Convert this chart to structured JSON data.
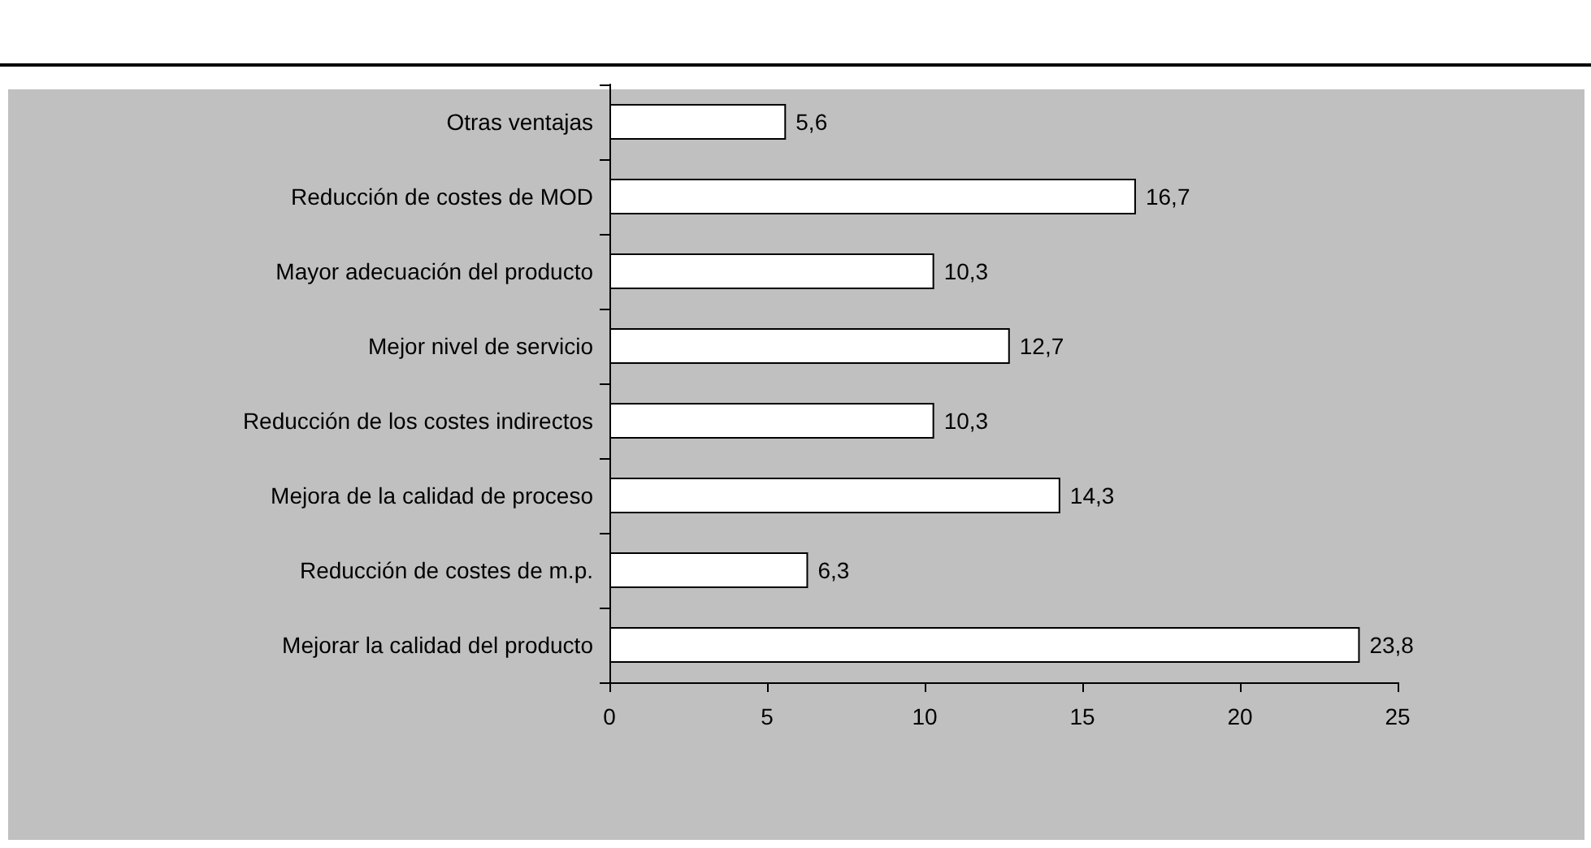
{
  "chart_data": {
    "type": "bar",
    "orientation": "horizontal",
    "categories": [
      "Otras ventajas",
      "Reducción de costes de MOD",
      "Mayor adecuación del producto",
      "Mejor nivel de servicio",
      "Reducción de los costes indirectos",
      "Mejora de la calidad de proceso",
      "Reducción de costes de m.p.",
      "Mejorar la calidad del producto"
    ],
    "values": [
      5.6,
      16.7,
      10.3,
      12.7,
      10.3,
      14.3,
      6.3,
      23.8
    ],
    "value_labels": [
      "5,6",
      "16,7",
      "10,3",
      "12,7",
      "10,3",
      "14,3",
      "6,3",
      "23,8"
    ],
    "color": "#ffffff",
    "xlim": [
      0,
      25
    ],
    "xticks": [
      0,
      5,
      10,
      15,
      20,
      25
    ],
    "grid": false
  }
}
